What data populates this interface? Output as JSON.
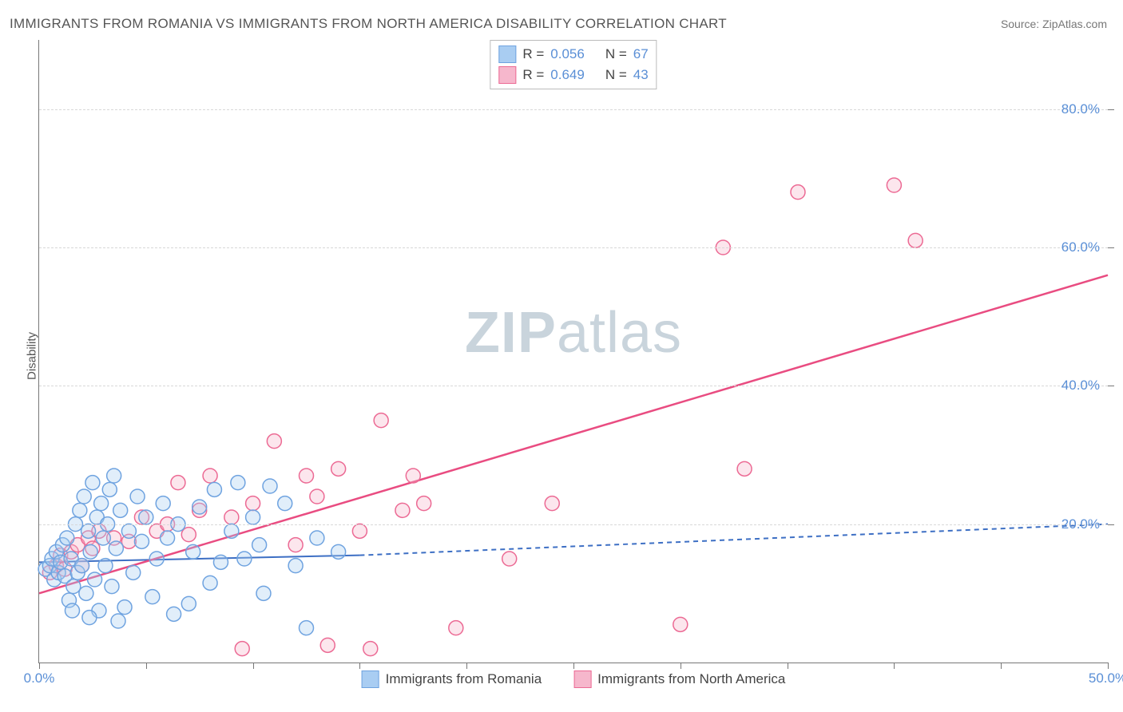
{
  "title": "IMMIGRANTS FROM ROMANIA VS IMMIGRANTS FROM NORTH AMERICA DISABILITY CORRELATION CHART",
  "source": "Source: ZipAtlas.com",
  "ylabel": "Disability",
  "watermark_bold": "ZIP",
  "watermark_light": "atlas",
  "xlim": [
    0,
    50
  ],
  "ylim": [
    0,
    90
  ],
  "xtick_positions": [
    0,
    5,
    10,
    15,
    20,
    25,
    30,
    35,
    40,
    45,
    50
  ],
  "xtick_labels_shown": {
    "0": "0.0%",
    "50": "50.0%"
  },
  "ytick_positions": [
    20,
    40,
    60,
    80
  ],
  "ytick_labels": [
    "20.0%",
    "40.0%",
    "60.0%",
    "80.0%"
  ],
  "grid_color": "#d8d8d8",
  "axis_color": "#777777",
  "tick_label_color": "#5a8fd6",
  "background_color": "#ffffff",
  "marker_radius": 9,
  "marker_stroke_width": 1.5,
  "marker_fill_opacity": 0.35,
  "series": {
    "romania": {
      "label": "Immigrants from Romania",
      "color_stroke": "#6fa3e0",
      "color_fill": "#a9cdf2",
      "R_label": "R =",
      "R": "0.056",
      "N_label": "N =",
      "N": "67",
      "trend": {
        "x1": 0,
        "y1": 14.5,
        "x2": 15,
        "y2": 15.5,
        "solid_end_x": 15,
        "dash_end_x": 50,
        "dash_end_y": 20,
        "color": "#3d6fc4",
        "width": 2,
        "dash": "6,5"
      },
      "points": [
        [
          0.3,
          13.5
        ],
        [
          0.5,
          14
        ],
        [
          0.6,
          15
        ],
        [
          0.7,
          12
        ],
        [
          0.8,
          16
        ],
        [
          0.9,
          13
        ],
        [
          1.0,
          14.5
        ],
        [
          1.1,
          17
        ],
        [
          1.2,
          12.5
        ],
        [
          1.3,
          18
        ],
        [
          1.4,
          9
        ],
        [
          1.5,
          15
        ],
        [
          1.6,
          11
        ],
        [
          1.7,
          20
        ],
        [
          1.8,
          13
        ],
        [
          1.9,
          22
        ],
        [
          2.0,
          14
        ],
        [
          2.1,
          24
        ],
        [
          2.2,
          10
        ],
        [
          2.3,
          19
        ],
        [
          2.4,
          16
        ],
        [
          2.5,
          26
        ],
        [
          2.6,
          12
        ],
        [
          2.7,
          21
        ],
        [
          2.8,
          7.5
        ],
        [
          2.9,
          23
        ],
        [
          3.0,
          18
        ],
        [
          3.1,
          14
        ],
        [
          3.2,
          20
        ],
        [
          3.3,
          25
        ],
        [
          3.4,
          11
        ],
        [
          3.5,
          27
        ],
        [
          3.6,
          16.5
        ],
        [
          3.8,
          22
        ],
        [
          4.0,
          8
        ],
        [
          4.2,
          19
        ],
        [
          4.4,
          13
        ],
        [
          4.6,
          24
        ],
        [
          4.8,
          17.5
        ],
        [
          5.0,
          21
        ],
        [
          5.3,
          9.5
        ],
        [
          5.5,
          15
        ],
        [
          5.8,
          23
        ],
        [
          6.0,
          18
        ],
        [
          6.3,
          7
        ],
        [
          6.5,
          20
        ],
        [
          7.0,
          8.5
        ],
        [
          7.2,
          16
        ],
        [
          7.5,
          22.5
        ],
        [
          8.0,
          11.5
        ],
        [
          8.2,
          25
        ],
        [
          8.5,
          14.5
        ],
        [
          9.0,
          19
        ],
        [
          9.3,
          26
        ],
        [
          9.6,
          15
        ],
        [
          10.0,
          21
        ],
        [
          10.3,
          17
        ],
        [
          10.8,
          25.5
        ],
        [
          11.5,
          23
        ],
        [
          12.0,
          14
        ],
        [
          12.5,
          5
        ],
        [
          13.0,
          18
        ],
        [
          14.0,
          16
        ],
        [
          10.5,
          10
        ],
        [
          3.7,
          6
        ],
        [
          2.35,
          6.5
        ],
        [
          1.55,
          7.5
        ]
      ]
    },
    "north_america": {
      "label": "Immigrants from North America",
      "color_stroke": "#ec6a94",
      "color_fill": "#f6b7cc",
      "R_label": "R =",
      "R": "0.649",
      "N_label": "N =",
      "N": "43",
      "trend": {
        "x1": 0,
        "y1": 10,
        "x2": 50,
        "y2": 56,
        "color": "#e94c81",
        "width": 2.5
      },
      "points": [
        [
          0.5,
          13
        ],
        [
          0.8,
          14
        ],
        [
          1.0,
          15.5
        ],
        [
          1.2,
          13.5
        ],
        [
          1.5,
          16
        ],
        [
          1.8,
          17
        ],
        [
          2.0,
          14
        ],
        [
          2.3,
          18
        ],
        [
          2.5,
          16.5
        ],
        [
          2.8,
          19
        ],
        [
          3.5,
          18
        ],
        [
          4.2,
          17.5
        ],
        [
          4.8,
          21
        ],
        [
          5.5,
          19
        ],
        [
          6.0,
          20
        ],
        [
          6.5,
          26
        ],
        [
          7.0,
          18.5
        ],
        [
          7.5,
          22
        ],
        [
          8.0,
          27
        ],
        [
          9.0,
          21
        ],
        [
          9.5,
          2
        ],
        [
          10.0,
          23
        ],
        [
          11.0,
          32
        ],
        [
          12.0,
          17
        ],
        [
          12.5,
          27
        ],
        [
          13.0,
          24
        ],
        [
          13.5,
          2.5
        ],
        [
          14.0,
          28
        ],
        [
          15.0,
          19
        ],
        [
          15.5,
          2
        ],
        [
          16.0,
          35
        ],
        [
          17.0,
          22
        ],
        [
          17.5,
          27
        ],
        [
          18.0,
          23
        ],
        [
          19.5,
          5
        ],
        [
          22.0,
          15
        ],
        [
          24.0,
          23
        ],
        [
          30.0,
          5.5
        ],
        [
          32.0,
          60
        ],
        [
          33.0,
          28
        ],
        [
          35.5,
          68
        ],
        [
          40.0,
          69
        ],
        [
          41.0,
          61
        ]
      ]
    }
  },
  "legend_bottom": [
    {
      "key": "romania"
    },
    {
      "key": "north_america"
    }
  ]
}
